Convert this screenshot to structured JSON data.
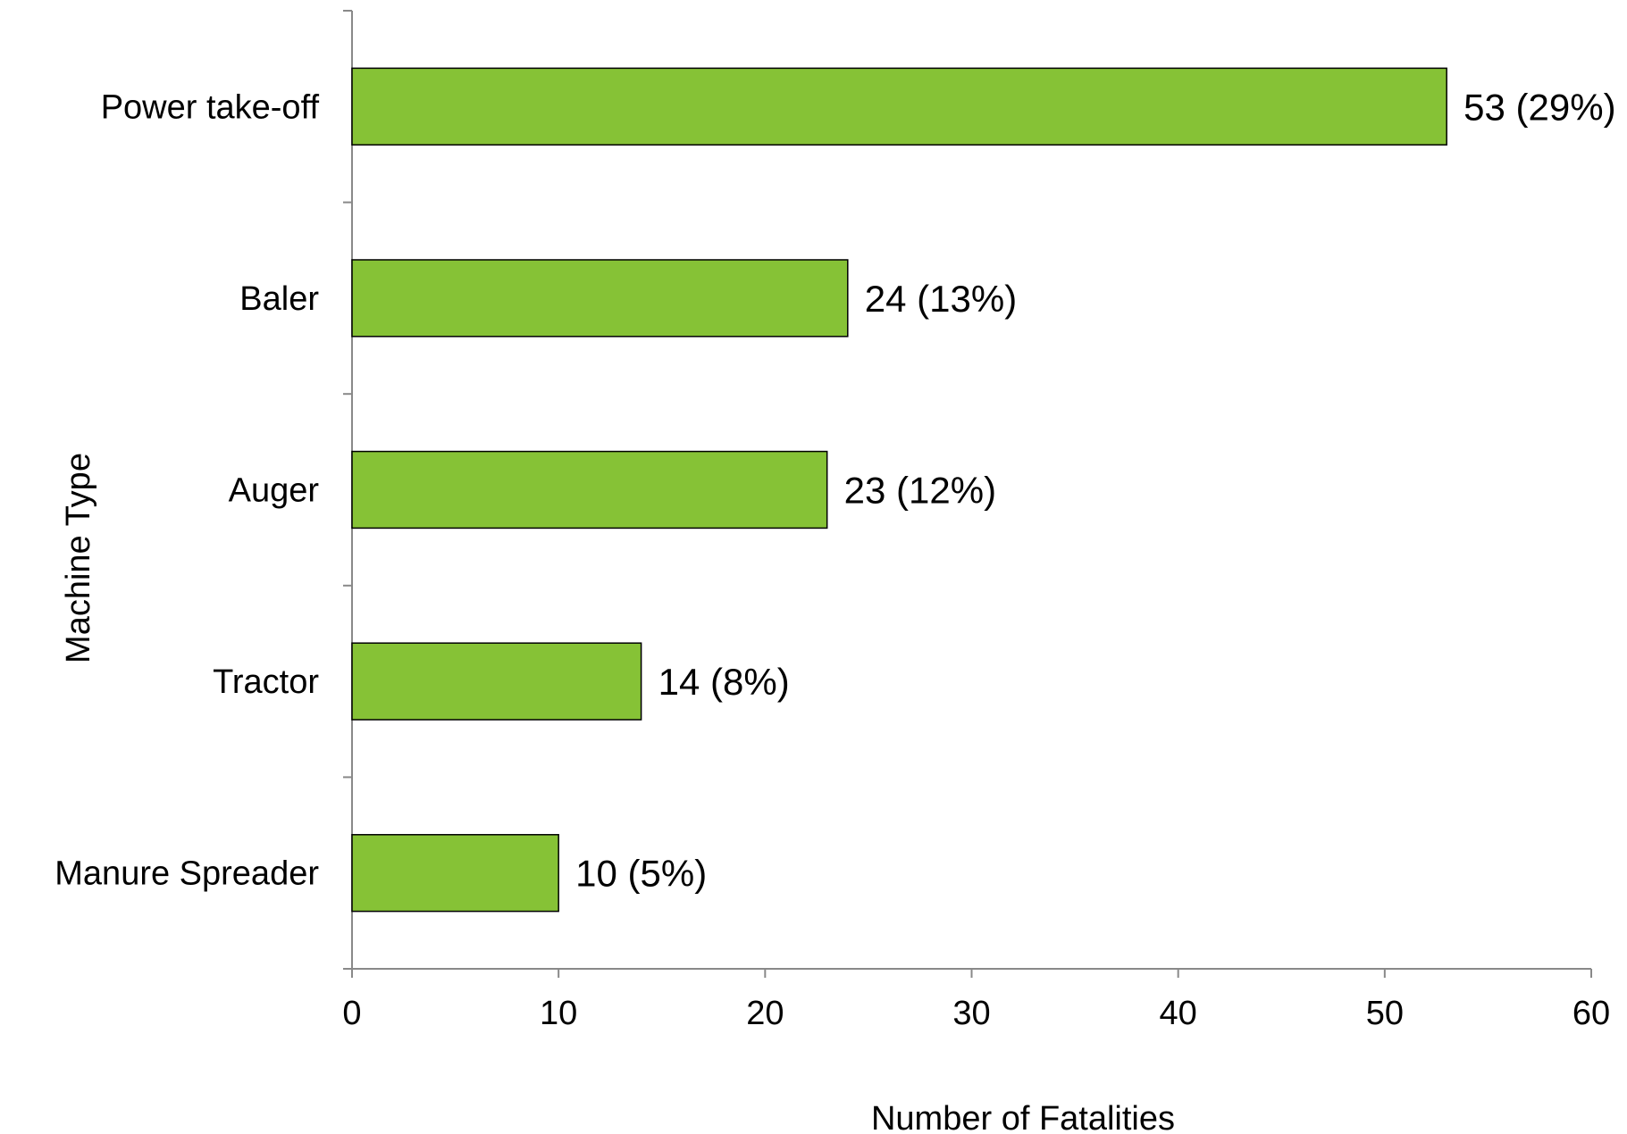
{
  "chart_data": {
    "type": "bar",
    "orientation": "horizontal",
    "categories": [
      "Power take-off",
      "Baler",
      "Auger",
      "Tractor",
      "Manure Spreader"
    ],
    "values": [
      53,
      24,
      23,
      14,
      10
    ],
    "data_labels": [
      "53 (29%)",
      "24 (13%)",
      "23 (12%)",
      "14 (8%)",
      "10 (5%)"
    ],
    "xlabel": "Number of Fatalities",
    "ylabel": "Machine Type",
    "xlim": [
      0,
      60
    ],
    "xticks": [
      0,
      10,
      20,
      30,
      40,
      50,
      60
    ],
    "grid": false,
    "legend": "none",
    "bar_color": "#86C236",
    "bar_stroke": "#000000",
    "axis_color": "#898989"
  }
}
